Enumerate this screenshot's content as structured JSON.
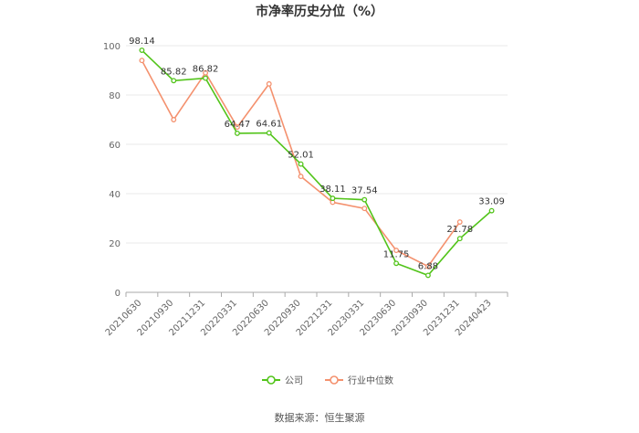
{
  "chart_data": {
    "type": "line",
    "title": "市净率历史分位（%）",
    "xlabel": "",
    "ylabel": "",
    "ylim": [
      0,
      100
    ],
    "yticks": [
      0,
      20,
      40,
      60,
      80,
      100
    ],
    "categories": [
      "20210630",
      "20210930",
      "20211231",
      "20220331",
      "20220630",
      "20220930",
      "20221231",
      "20230331",
      "20230630",
      "20230930",
      "20231231",
      "20240423"
    ],
    "grid": true,
    "legend_position": "bottom",
    "series": [
      {
        "name": "公司",
        "color": "#52c41a",
        "values": [
          98.14,
          85.82,
          86.82,
          64.47,
          64.61,
          52.01,
          38.11,
          37.54,
          11.75,
          6.88,
          21.78,
          33.09
        ],
        "labels": [
          "98.14",
          "85.82",
          "86.82",
          "64.47",
          "64.61",
          "52.01",
          "38.11",
          "37.54",
          "11.75",
          "6.88",
          "21.78",
          "33.09"
        ]
      },
      {
        "name": "行业中位数",
        "color": "#f4916e",
        "values": [
          94,
          70,
          89,
          67,
          84.5,
          47,
          36.5,
          34,
          17,
          10.5,
          28.5,
          null
        ]
      }
    ]
  },
  "source": "数据来源：恒生聚源"
}
